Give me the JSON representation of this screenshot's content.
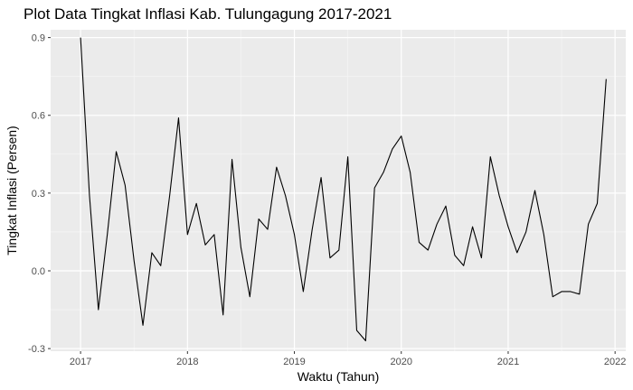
{
  "chart_data": {
    "type": "line",
    "title": "Plot Data Tingkat Inflasi Kab. Tulungagung 2017-2021",
    "xlabel": "Waktu (Tahun)",
    "ylabel": "Tingkat Inflasi (Persen)",
    "x_ticks": [
      "2017",
      "2018",
      "2019",
      "2020",
      "2021",
      "2022"
    ],
    "y_ticks": [
      "-0.3",
      "0.0",
      "0.3",
      "0.6",
      "0.9"
    ],
    "xlim": [
      2016.72,
      2022.1
    ],
    "ylim": [
      -0.31,
      0.93
    ],
    "grid": true,
    "legend": "none",
    "x_start": "2017-01",
    "x_step_months": 1,
    "series": [
      {
        "values": [
          0.9,
          0.29,
          -0.15,
          0.14,
          0.46,
          0.33,
          0.04,
          -0.21,
          0.07,
          0.02,
          0.29,
          0.59,
          0.14,
          0.26,
          0.1,
          0.14,
          -0.17,
          0.43,
          0.09,
          -0.1,
          0.2,
          0.16,
          0.4,
          0.29,
          0.14,
          -0.08,
          0.16,
          0.36,
          0.05,
          0.08,
          0.44,
          -0.23,
          -0.27,
          0.32,
          0.38,
          0.47,
          0.52,
          0.38,
          0.11,
          0.08,
          0.18,
          0.25,
          0.06,
          0.02,
          0.17,
          0.05,
          0.44,
          0.29,
          0.17,
          0.07,
          0.15,
          0.31,
          0.14,
          -0.1,
          -0.08,
          -0.08,
          -0.09,
          0.18,
          0.26,
          0.74
        ]
      }
    ]
  }
}
